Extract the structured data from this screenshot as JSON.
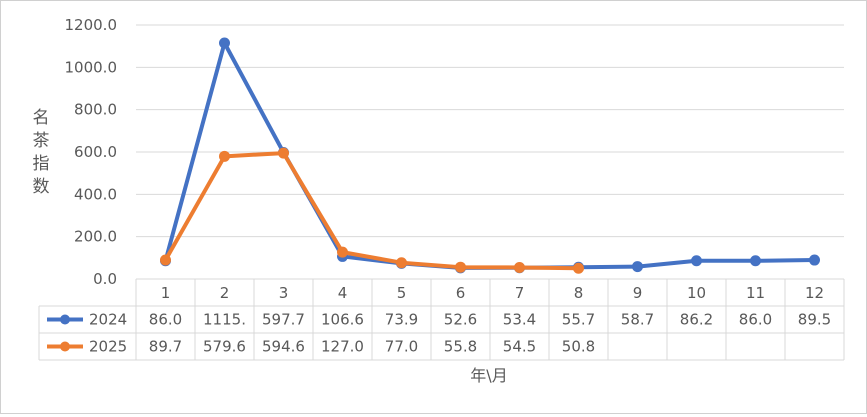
{
  "chart_data": {
    "type": "line",
    "title": "",
    "ylabel": "名茶指数",
    "xlabel": "年\\月",
    "ylim": [
      0,
      1200
    ],
    "yticks": [
      0,
      200,
      400,
      600,
      800,
      1000,
      1200
    ],
    "ytick_labels": [
      "0.0",
      "200.0",
      "400.0",
      "600.0",
      "800.0",
      "1000.0",
      "1200.0"
    ],
    "categories": [
      "1",
      "2",
      "3",
      "4",
      "5",
      "6",
      "7",
      "8",
      "9",
      "10",
      "11",
      "12"
    ],
    "grid": true,
    "legend": "data-table-left",
    "series": [
      {
        "name": "2024",
        "color": "#4472C4",
        "values": [
          86.0,
          1115.0,
          597.7,
          106.6,
          73.9,
          52.6,
          53.4,
          55.7,
          58.7,
          86.2,
          86.0,
          89.5
        ],
        "table_labels": [
          "86.0",
          "1115.",
          "597.7",
          "106.6",
          "73.9",
          "52.6",
          "53.4",
          "55.7",
          "58.7",
          "86.2",
          "86.0",
          "89.5"
        ]
      },
      {
        "name": "2025",
        "color": "#ED7D31",
        "values": [
          89.7,
          579.6,
          594.6,
          127.0,
          77.0,
          55.8,
          54.5,
          50.8,
          null,
          null,
          null,
          null
        ],
        "table_labels": [
          "89.7",
          "579.6",
          "594.6",
          "127.0",
          "77.0",
          "55.8",
          "54.5",
          "50.8",
          "",
          "",
          "",
          ""
        ]
      }
    ]
  }
}
